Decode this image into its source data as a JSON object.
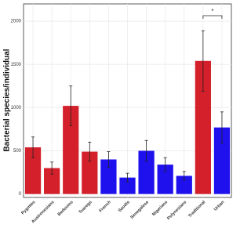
{
  "chart_data": {
    "type": "bar",
    "y_label": "Bacterial species/individual",
    "categories": [
      "Pygmies",
      "Austronesians",
      "Bedouins",
      "Tuaregs",
      "French",
      "Saudis",
      "Senegalese",
      "Nigerians",
      "Polynesians",
      "Traditional",
      "Urban"
    ],
    "values": [
      540,
      300,
      1020,
      490,
      400,
      190,
      500,
      340,
      210,
      1540,
      770
    ],
    "errors": [
      120,
      70,
      230,
      110,
      90,
      50,
      120,
      80,
      50,
      350,
      180
    ],
    "colors": [
      "#d3202a",
      "#d3202a",
      "#d3202a",
      "#d3202a",
      "#1f10ee",
      "#1f10ee",
      "#1f10ee",
      "#1f10ee",
      "#1f10ee",
      "#d3202a",
      "#1f10ee"
    ],
    "ylim": [
      -40,
      2200
    ],
    "yticks": [
      0,
      500,
      1000,
      1500,
      2000
    ],
    "grid": true,
    "annotation": "*"
  }
}
